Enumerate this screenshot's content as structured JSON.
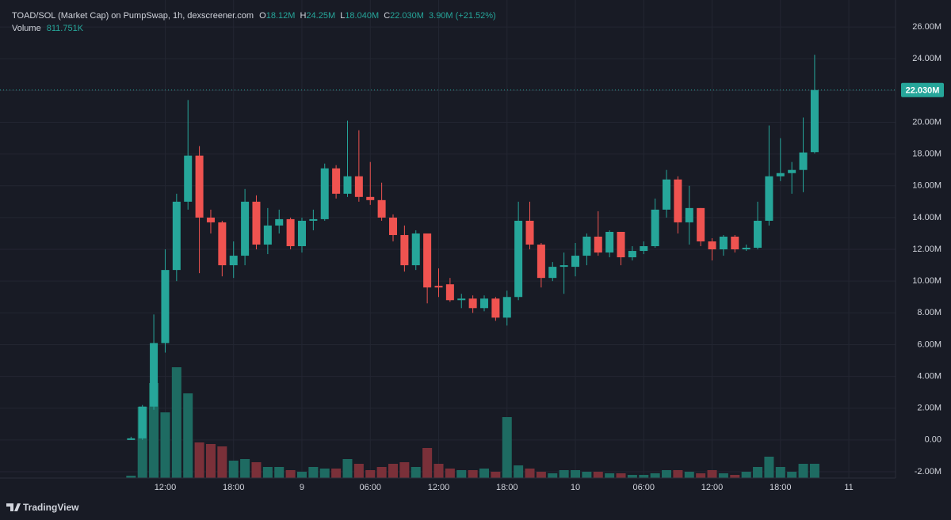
{
  "chart_data": {
    "type": "candlestick",
    "header": {
      "title": "TOAD/SOL (Market Cap) on PumpSwap, 1h, dexscreener.com",
      "ohlc": [
        {
          "label": "O",
          "value": "18.12M"
        },
        {
          "label": "H",
          "value": "24.25M"
        },
        {
          "label": "L",
          "value": "18.040M"
        },
        {
          "label": "C",
          "value": "22.030M"
        }
      ],
      "change": "3.90M (+21.52%)",
      "volume_label": "Volume",
      "volume_value": "811.751K"
    },
    "brand": "TradingView",
    "x": [
      0,
      1,
      2,
      3,
      4,
      5,
      6,
      7,
      8,
      9,
      10,
      11,
      12,
      13,
      14,
      15,
      16,
      17,
      18,
      19,
      20,
      21,
      22,
      23,
      24,
      25,
      26,
      27,
      28,
      29,
      30,
      31,
      32,
      33,
      34,
      35,
      36,
      37,
      38,
      39,
      40,
      41,
      42,
      43,
      44,
      45,
      46,
      47,
      48,
      49,
      50,
      51,
      52,
      53,
      54,
      55,
      56,
      57,
      58,
      59,
      60
    ],
    "open": [
      0,
      0.1,
      2.1,
      6.1,
      10.7,
      15,
      17.9,
      14,
      13.7,
      11,
      11.6,
      15,
      12.3,
      13.5,
      13.9,
      12.2,
      13.8,
      13.9,
      17.1,
      15.5,
      16.6,
      15.3,
      15.1,
      14,
      12.9,
      11.0,
      13.0,
      9.7,
      9.8,
      8.8,
      8.9,
      8.3,
      8.9,
      7.7,
      9,
      13.8,
      12.3,
      10.2,
      10.9,
      10.9,
      11.6,
      12.8,
      11.8,
      13.1,
      11.5,
      11.9,
      12.2,
      14.5,
      16.4,
      13.7,
      14.6,
      12.5,
      12,
      12.8,
      12,
      12.1,
      13.8,
      16.6,
      16.8,
      17,
      18.12
    ],
    "high": [
      0.2,
      2.2,
      7.9,
      12,
      15.5,
      21.4,
      18.5,
      14.5,
      13.8,
      12.5,
      15.8,
      15.4,
      14.6,
      14.5,
      14,
      14,
      14.5,
      17.4,
      17.3,
      20.1,
      19.5,
      17.5,
      16.2,
      14.2,
      13.5,
      13.2,
      13,
      10.8,
      10.2,
      9.2,
      9.1,
      9.1,
      9,
      9.4,
      15,
      15,
      12.4,
      11.2,
      11.8,
      12.4,
      13,
      14.4,
      13.2,
      13.1,
      12.2,
      12.5,
      15.2,
      17,
      16.6,
      16,
      14.6,
      12.7,
      12.9,
      12.9,
      12.3,
      15,
      19.8,
      19,
      17.5,
      20.3,
      24.25
    ],
    "low": [
      0,
      0,
      1.9,
      5.5,
      10,
      14.5,
      10.5,
      13,
      10.3,
      10.2,
      11,
      12,
      11.7,
      13,
      12,
      11.8,
      13.2,
      13.8,
      15.2,
      15.3,
      15,
      14.8,
      13.8,
      12.5,
      10.6,
      10.7,
      8.6,
      9,
      8.7,
      8.3,
      8,
      8.1,
      7.5,
      7.2,
      8.8,
      12,
      9.6,
      10,
      9.2,
      10.3,
      11,
      11.6,
      11.5,
      11,
      11.3,
      11.7,
      12.1,
      14,
      13,
      12.3,
      12.2,
      11.3,
      11.6,
      11.8,
      11.9,
      12,
      13.5,
      16.3,
      15.5,
      15.6,
      18.04
    ],
    "close": [
      0.1,
      2.1,
      6.1,
      10.7,
      15,
      17.9,
      14,
      13.7,
      11,
      11.6,
      15,
      12.3,
      13.5,
      13.9,
      12.2,
      13.8,
      13.9,
      17.1,
      15.5,
      16.6,
      15.3,
      15.1,
      14,
      12.9,
      11.0,
      13.0,
      9.6,
      9.6,
      8.8,
      8.9,
      8.3,
      8.9,
      7.7,
      9,
      13.8,
      12.3,
      10.2,
      10.9,
      11,
      11.6,
      12.8,
      11.8,
      13.1,
      11.5,
      11.9,
      12.2,
      14.5,
      16.4,
      13.7,
      14.6,
      12.5,
      12,
      12.8,
      12,
      12.1,
      13.8,
      16.6,
      16.8,
      17,
      18.1,
      22.03
    ],
    "volume": [
      135,
      4050,
      5400,
      3735,
      6300,
      4815,
      2025,
      1935,
      1800,
      990,
      1080,
      900,
      630,
      630,
      450,
      360,
      630,
      540,
      540,
      1080,
      810,
      450,
      630,
      810,
      900,
      630,
      1710,
      810,
      540,
      450,
      450,
      540,
      360,
      3465,
      720,
      540,
      360,
      270,
      450,
      450,
      360,
      360,
      270,
      270,
      180,
      180,
      270,
      450,
      450,
      360,
      270,
      450,
      270,
      180,
      360,
      630,
      1215,
      630,
      360,
      810,
      811.751
    ],
    "up_color": "#26a69a",
    "down_color": "#ef5350",
    "volume_up_color": "#1e6b62",
    "volume_down_color": "#7a3039",
    "xlim": [
      -11.5,
      67.1
    ],
    "ylim": [
      -2.4,
      27.7
    ],
    "volume_lim": [
      0,
      6750
    ],
    "yticks": [
      {
        "value": -2,
        "label": "-2.00M"
      },
      {
        "value": 0,
        "label": "0.00"
      },
      {
        "value": 2,
        "label": "2.00M"
      },
      {
        "value": 4,
        "label": "4.00M"
      },
      {
        "value": 6,
        "label": "6.00M"
      },
      {
        "value": 8,
        "label": "8.00M"
      },
      {
        "value": 10,
        "label": "10.00M"
      },
      {
        "value": 12,
        "label": "12.00M"
      },
      {
        "value": 14,
        "label": "14.00M"
      },
      {
        "value": 16,
        "label": "16.00M"
      },
      {
        "value": 18,
        "label": "18.00M"
      },
      {
        "value": 20,
        "label": "20.00M"
      },
      {
        "value": 22,
        "label": "22.00M"
      },
      {
        "value": 24,
        "label": "24.00M"
      },
      {
        "value": 26,
        "label": "26.00M"
      }
    ],
    "xticks": [
      {
        "value": 3,
        "label": "12:00"
      },
      {
        "value": 9,
        "label": "18:00"
      },
      {
        "value": 15,
        "label": "9"
      },
      {
        "value": 21,
        "label": "06:00"
      },
      {
        "value": 27,
        "label": "12:00"
      },
      {
        "value": 33,
        "label": "18:00"
      },
      {
        "value": 39,
        "label": "10"
      },
      {
        "value": 45,
        "label": "06:00"
      },
      {
        "value": 51,
        "label": "12:00"
      },
      {
        "value": 57,
        "label": "18:00"
      },
      {
        "value": 63,
        "label": "11"
      }
    ],
    "last_price": {
      "value": 22.03,
      "label": "22.030M"
    },
    "grid": true
  }
}
